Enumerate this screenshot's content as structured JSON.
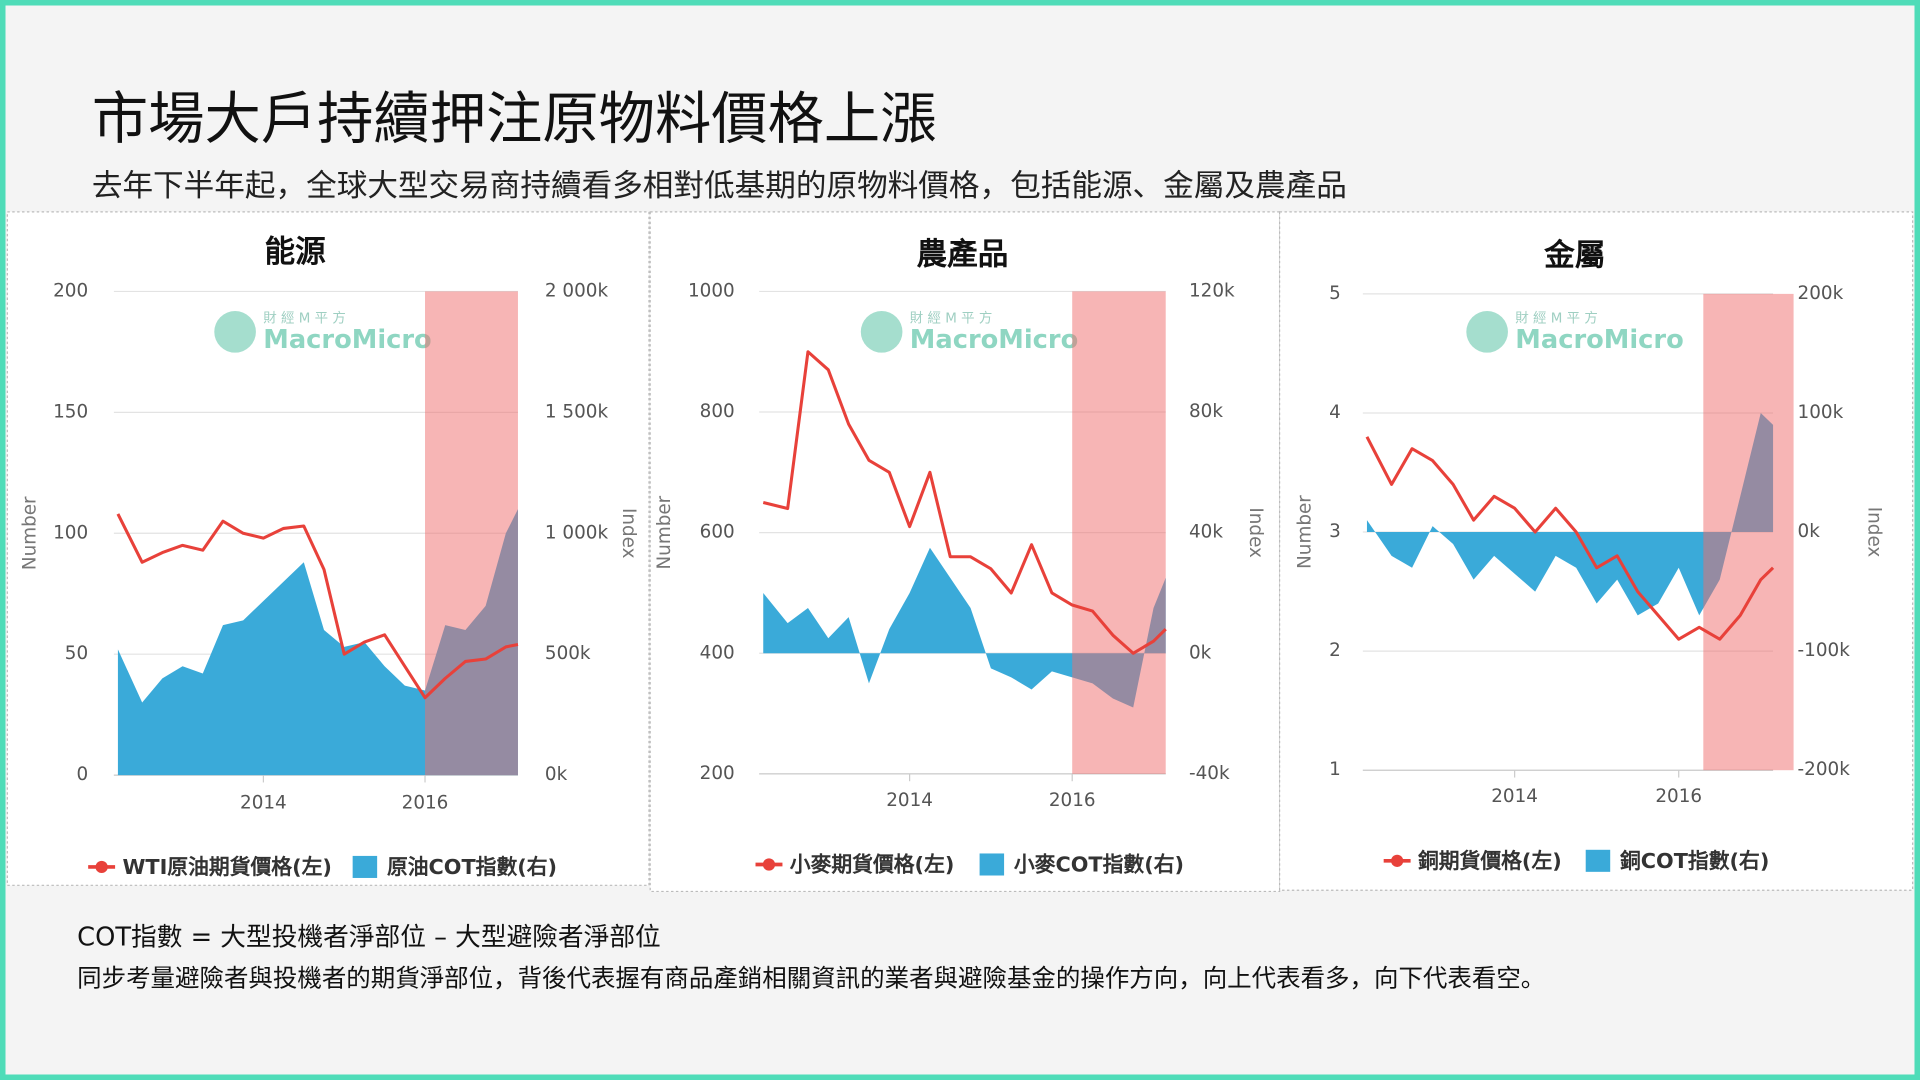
{
  "header": {
    "title": "市場大戶持續押注原物料價格上漲",
    "subtitle": "去年下半年起，全球大型交易商持續看多相對低基期的原物料價格，包括能源、金屬及農產品"
  },
  "watermark": {
    "top": "財 經 M 平 方",
    "brand": "MacroMicro"
  },
  "chart_data": [
    {
      "type": "combo",
      "title": "能源",
      "ylabel": "Number",
      "y2label": "Index",
      "legend": "bottom",
      "grid": true,
      "x": [
        2012.2,
        2012.5,
        2012.75,
        2013,
        2013.25,
        2013.5,
        2013.75,
        2014,
        2014.25,
        2014.5,
        2014.75,
        2015,
        2015.25,
        2015.5,
        2015.75,
        2016,
        2016.25,
        2016.5,
        2016.75,
        2017,
        2017.15
      ],
      "xlim": [
        2012.15,
        2017.15
      ],
      "xticks": [
        2014,
        2016
      ],
      "highlight": [
        2016,
        2017.15
      ],
      "ylim": [
        0,
        200
      ],
      "yticks": [
        0,
        50,
        100,
        150,
        200
      ],
      "y2lim": [
        0,
        2000000
      ],
      "y2ticks": [
        {
          "value": 0,
          "label": "0k"
        },
        {
          "value": 500000,
          "label": "500k"
        },
        {
          "value": 1000000,
          "label": "1 000k"
        },
        {
          "value": 1500000,
          "label": "1 500k"
        },
        {
          "value": 2000000,
          "label": "2 000k"
        }
      ],
      "series": [
        {
          "name": "WTI原油期貨價格(左)",
          "type": "line",
          "color": "#e8413a",
          "values": [
            108,
            88,
            92,
            95,
            93,
            105,
            100,
            98,
            102,
            103,
            85,
            50,
            55,
            58,
            45,
            32,
            40,
            47,
            48,
            53,
            54
          ]
        },
        {
          "name": "原油COT指數(右)",
          "type": "area",
          "axis": "y2",
          "color": "#3aaad9",
          "values": [
            520000,
            300000,
            400000,
            450000,
            420000,
            620000,
            640000,
            720000,
            800000,
            880000,
            600000,
            530000,
            550000,
            450000,
            370000,
            350000,
            620000,
            600000,
            700000,
            1000000,
            1100000
          ]
        }
      ]
    },
    {
      "type": "combo",
      "title": "農產品",
      "ylabel": "Number",
      "y2label": "Index",
      "legend": "bottom",
      "grid": true,
      "x": [
        2012.2,
        2012.5,
        2012.75,
        2013,
        2013.25,
        2013.5,
        2013.75,
        2014,
        2014.25,
        2014.5,
        2014.75,
        2015,
        2015.25,
        2015.5,
        2015.75,
        2016,
        2016.25,
        2016.5,
        2016.75,
        2017,
        2017.15
      ],
      "xlim": [
        2012.15,
        2017.15
      ],
      "xticks": [
        2014,
        2016
      ],
      "highlight": [
        2016,
        2017.15
      ],
      "ylim": [
        200,
        1000
      ],
      "yticks": [
        200,
        400,
        600,
        800,
        1000
      ],
      "y2lim": [
        -40000,
        120000
      ],
      "y2ticks": [
        {
          "value": -40000,
          "label": "-40k"
        },
        {
          "value": 0,
          "label": "0k"
        },
        {
          "value": 40000,
          "label": "40k"
        },
        {
          "value": 80000,
          "label": "80k"
        },
        {
          "value": 120000,
          "label": "120k"
        }
      ],
      "series": [
        {
          "name": "小麥期貨價格(左)",
          "type": "line",
          "color": "#e8413a",
          "values": [
            650,
            640,
            900,
            870,
            780,
            720,
            700,
            610,
            700,
            560,
            560,
            540,
            500,
            580,
            500,
            480,
            470,
            430,
            400,
            420,
            440
          ]
        },
        {
          "name": "小麥COT指數(右)",
          "type": "area",
          "axis": "y2",
          "color": "#3aaad9",
          "values": [
            20000,
            10000,
            15000,
            5000,
            12000,
            -10000,
            8000,
            20000,
            35000,
            25000,
            15000,
            -5000,
            -8000,
            -12000,
            -6000,
            -8000,
            -10000,
            -15000,
            -18000,
            15000,
            25000
          ]
        }
      ]
    },
    {
      "type": "combo",
      "title": "金屬",
      "ylabel": "Number",
      "y2label": "Index",
      "legend": "bottom",
      "grid": true,
      "x": [
        2012.2,
        2012.5,
        2012.75,
        2013,
        2013.25,
        2013.5,
        2013.75,
        2014,
        2014.25,
        2014.5,
        2014.75,
        2015,
        2015.25,
        2015.5,
        2015.75,
        2016,
        2016.25,
        2016.5,
        2016.75,
        2017,
        2017.15
      ],
      "xlim": [
        2012.15,
        2017.15
      ],
      "xticks": [
        2014,
        2016
      ],
      "highlight": [
        2016.3,
        2017.4
      ],
      "ylim": [
        1,
        5
      ],
      "yticks": [
        1,
        2,
        3,
        4,
        5
      ],
      "y2lim": [
        -200000,
        200000
      ],
      "y2ticks": [
        {
          "value": -200000,
          "label": "-200k"
        },
        {
          "value": -100000,
          "label": "-100k"
        },
        {
          "value": 0,
          "label": "0k"
        },
        {
          "value": 100000,
          "label": "100k"
        },
        {
          "value": 200000,
          "label": "200k"
        }
      ],
      "series": [
        {
          "name": "銅期貨價格(左)",
          "type": "line",
          "color": "#e8413a",
          "values": [
            3.8,
            3.4,
            3.7,
            3.6,
            3.4,
            3.1,
            3.3,
            3.2,
            3.0,
            3.2,
            3.0,
            2.7,
            2.8,
            2.5,
            2.3,
            2.1,
            2.2,
            2.1,
            2.3,
            2.6,
            2.7
          ]
        },
        {
          "name": "銅COT指數(右)",
          "type": "area",
          "axis": "y2",
          "color": "#3aaad9",
          "values": [
            10000,
            -20000,
            -30000,
            5000,
            -10000,
            -40000,
            -20000,
            -35000,
            -50000,
            -20000,
            -30000,
            -60000,
            -40000,
            -70000,
            -60000,
            -30000,
            -70000,
            -40000,
            30000,
            100000,
            90000
          ]
        }
      ]
    }
  ],
  "footer": {
    "line1": "COT指數 = 大型投機者淨部位 – 大型避險者淨部位",
    "line2": "同步考量避險者與投機者的期貨淨部位，背後代表握有商品產銷相關資訊的業者與避險基金的操作方向，向上代表看多，向下代表看空。"
  }
}
